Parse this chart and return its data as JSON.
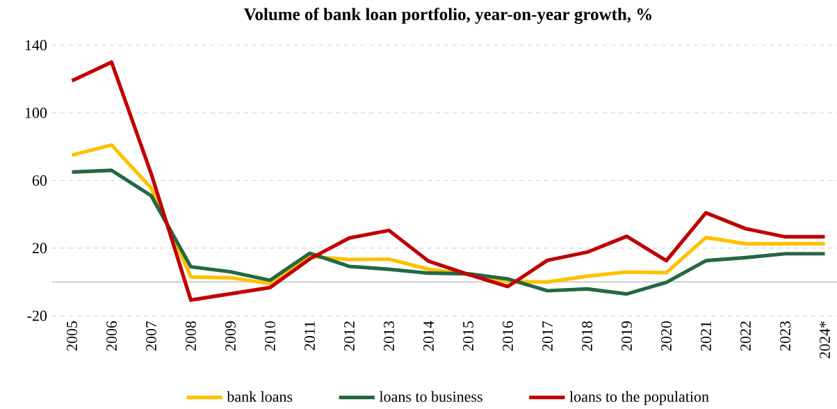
{
  "chart_data": {
    "type": "line",
    "title": "Volume of bank loan portfolio, year-on-year growth, %",
    "categories": [
      "2005",
      "2006",
      "2007",
      "2008",
      "2009",
      "2010",
      "2011",
      "2012",
      "2013",
      "2014",
      "2015",
      "2016",
      "2017",
      "2018",
      "2019",
      "2020",
      "2021",
      "2022",
      "2023",
      "2024*"
    ],
    "series": [
      {
        "name": "bank loans",
        "color": "#ffc000",
        "values": [
          75,
          81,
          55.5,
          3,
          2.5,
          -1,
          15,
          13.3,
          13.5,
          7.5,
          4.5,
          0.3,
          0,
          3.4,
          5.9,
          5.5,
          26.3,
          22.6,
          22.6,
          22.6
        ]
      },
      {
        "name": "loans to business",
        "color": "#246843",
        "values": [
          65,
          66,
          51,
          9,
          6,
          1,
          17,
          9.2,
          7.5,
          5.2,
          4.8,
          1.8,
          -5.2,
          -4.1,
          -7.1,
          -0.3,
          12.6,
          14.4,
          16.7,
          16.7
        ]
      },
      {
        "name": "loans to the population",
        "color": "#c00000",
        "values": [
          119,
          130,
          64,
          -10.7,
          -7,
          -3.3,
          13.6,
          26,
          30.5,
          12.3,
          4.5,
          -2.7,
          12.8,
          17.6,
          27,
          12.6,
          40.9,
          31.5,
          26.7,
          26.7
        ]
      }
    ],
    "ylim": [
      -20,
      140
    ],
    "yticks": [
      -20,
      20,
      60,
      100,
      140
    ],
    "grid": "y",
    "legend": "bottom",
    "marker": "none",
    "line_style": "solid"
  }
}
